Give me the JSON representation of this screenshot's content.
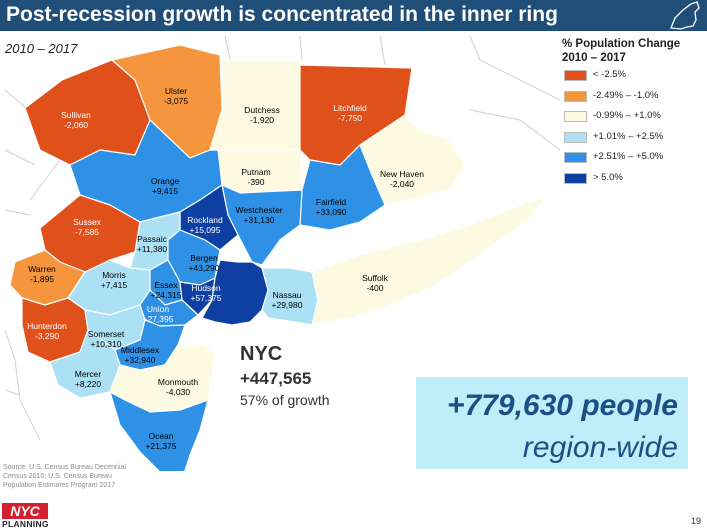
{
  "header": {
    "title": "Post-recession growth is concentrated in the inner ring",
    "subtitle": "2010 – 2017"
  },
  "legend": {
    "title_line1": "% Population Change",
    "title_line2": "2010 – 2017",
    "items": [
      {
        "label": "< -2.5%",
        "color": "#e0501a"
      },
      {
        "label": "-2.49% – -1.0%",
        "color": "#f5963f"
      },
      {
        "label": "-0.99% – +1.0%",
        "color": "#fcfbe1"
      },
      {
        "label": "+1.01% – +2.5%",
        "color": "#ace0f5"
      },
      {
        "label": "+2.51% – +5.0%",
        "color": "#2f91e6"
      },
      {
        "label": "> 5.0%",
        "color": "#0e3fa3"
      }
    ]
  },
  "counties": {
    "ulster": {
      "name": "Ulster",
      "value": "-3,075"
    },
    "sullivan": {
      "name": "Sullivan",
      "value": "-2,060"
    },
    "dutchess": {
      "name": "Dutchess",
      "value": "-1,920"
    },
    "litchfield": {
      "name": "Litchfield",
      "value": "-7,750"
    },
    "orange": {
      "name": "Orange",
      "value": "+9,415"
    },
    "putnam": {
      "name": "Putnam",
      "value": "-390"
    },
    "new_haven": {
      "name": "New Haven",
      "value": "-2,040"
    },
    "fairfield": {
      "name": "Fairfield",
      "value": "+33,090"
    },
    "westchester": {
      "name": "Westchester",
      "value": "+31,130"
    },
    "rockland": {
      "name": "Rockland",
      "value": "+15,095"
    },
    "sussex": {
      "name": "Sussex",
      "value": "-7,585"
    },
    "passaic": {
      "name": "Passaic",
      "value": "+11,380"
    },
    "bergen": {
      "name": "Bergen",
      "value": "+43,290"
    },
    "warren": {
      "name": "Warren",
      "value": "-1,895"
    },
    "morris": {
      "name": "Morris",
      "value": "+7,415"
    },
    "essex": {
      "name": "Essex",
      "value": "+24,315"
    },
    "hudson": {
      "name": "Hudson",
      "value": "+57,375"
    },
    "union": {
      "name": "Union",
      "value": "+27,395"
    },
    "nassau": {
      "name": "Nassau",
      "value": "+29,980"
    },
    "suffolk": {
      "name": "Suffolk",
      "value": "-400"
    },
    "hunterdon": {
      "name": "Hunterdon",
      "value": "-3,290"
    },
    "somerset": {
      "name": "Somerset",
      "value": "+10,310"
    },
    "middlesex": {
      "name": "Middlesex",
      "value": "+32,940"
    },
    "mercer": {
      "name": "Mercer",
      "value": "+8,220"
    },
    "monmouth": {
      "name": "Monmouth",
      "value": "-4,030"
    },
    "ocean": {
      "name": "Ocean",
      "value": "+21,375"
    }
  },
  "nyc": {
    "label": "NYC",
    "value": "+447,565",
    "share": "57% of growth"
  },
  "callout": {
    "value": "+779,630 people",
    "label": "region-wide"
  },
  "source": "Source: U.S. Census Bureau Decennial Census 2010; U.S. Census Bureau Population Estimates Program 2017",
  "logo": {
    "top": "NYC",
    "bottom": "PLANNING"
  },
  "page_number": "19"
}
